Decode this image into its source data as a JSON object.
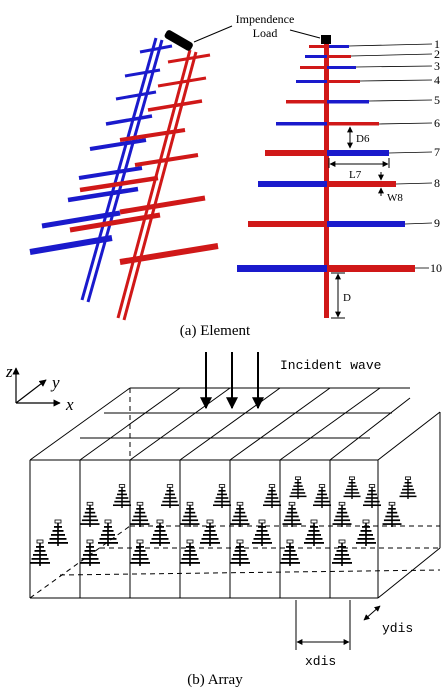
{
  "element": {
    "caption": "(a) Element",
    "load_label_line1": "Impendence",
    "load_label_line2": "Load",
    "dipole_numbers": [
      "1",
      "2",
      "3",
      "4",
      "5",
      "6",
      "7",
      "8",
      "9",
      "10"
    ],
    "dim_d6": "D6",
    "dim_l7": "L7",
    "dim_w8": "W8",
    "dim_d": "D",
    "colors": {
      "blue": "#1a1acc",
      "red": "#d01818"
    }
  },
  "array": {
    "caption": "(b) Array",
    "incident_label": "Incident wave",
    "axis_z": "z",
    "axis_y": "y",
    "axis_x": "x",
    "xdis_label": "xdis",
    "ydis_label": "ydis"
  }
}
